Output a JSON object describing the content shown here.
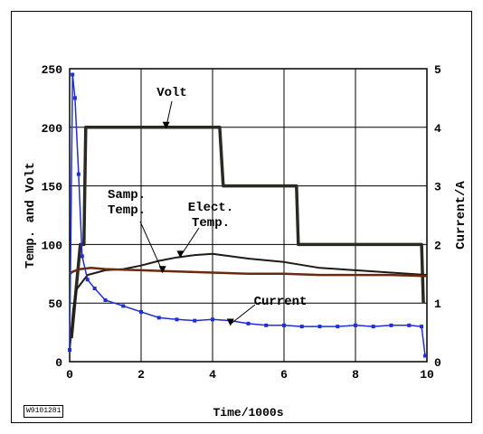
{
  "figure_id": "W9101281",
  "chart_data": {
    "type": "line",
    "xlabel": "Time/1000s",
    "ylabel_left": "Temp. and Volt",
    "ylabel_right": "Current/A",
    "xlim": [
      0,
      10
    ],
    "ylim_left": [
      0,
      250
    ],
    "ylim_right": [
      0,
      5
    ],
    "x_ticks": [
      "0",
      "2",
      "4",
      "6",
      "8",
      "10"
    ],
    "y_left_ticks": [
      "0",
      "50",
      "100",
      "150",
      "200",
      "250"
    ],
    "y_right_ticks": [
      "0",
      "1",
      "2",
      "3",
      "4",
      "5"
    ],
    "grid": true,
    "series": [
      {
        "name": "Volt",
        "axis": "left",
        "color": "#2a2a22",
        "x": [
          0.05,
          0.3,
          0.4,
          0.45,
          4.2,
          4.3,
          6.35,
          6.4,
          9.85,
          9.9
        ],
        "y": [
          20,
          100,
          100,
          200,
          200,
          150,
          150,
          100,
          100,
          50
        ]
      },
      {
        "name": "Elect. Temp.",
        "axis": "left",
        "color": "#1e1a14",
        "x": [
          0,
          0.1,
          0.2,
          0.5,
          1,
          1.5,
          2,
          2.5,
          3,
          3.5,
          4,
          4.5,
          5,
          6,
          7,
          8,
          9,
          10
        ],
        "y": [
          10,
          45,
          62,
          74,
          78,
          79,
          82,
          86,
          89,
          91,
          92,
          90,
          88,
          85,
          80,
          78,
          76,
          74
        ]
      },
      {
        "name": "Samp. Temp.",
        "axis": "left",
        "color": "#6b2a10",
        "x": [
          0,
          0.1,
          0.3,
          0.6,
          1,
          2,
          3,
          4,
          5,
          6,
          7,
          8,
          9,
          10
        ],
        "y": [
          75,
          77,
          79,
          80,
          79,
          78,
          77,
          76,
          75,
          75,
          74,
          74,
          74,
          73
        ]
      },
      {
        "name": "Current",
        "axis": "right",
        "color": "#1f2ed6",
        "x": [
          0,
          0.08,
          0.15,
          0.25,
          0.35,
          0.5,
          0.7,
          1,
          1.5,
          2,
          2.5,
          3,
          3.5,
          4,
          4.5,
          5,
          5.5,
          6,
          6.5,
          7,
          7.5,
          8,
          8.5,
          9,
          9.5,
          9.85,
          9.95
        ],
        "y": [
          0.2,
          4.9,
          4.5,
          3.2,
          1.8,
          1.4,
          1.25,
          1.05,
          0.95,
          0.85,
          0.75,
          0.72,
          0.7,
          0.72,
          0.7,
          0.65,
          0.62,
          0.62,
          0.6,
          0.6,
          0.6,
          0.62,
          0.6,
          0.62,
          0.62,
          0.6,
          0.1
        ]
      }
    ],
    "annotations": [
      {
        "text": "Volt",
        "target_x": 2.7,
        "target_y": 200
      },
      {
        "text": "Samp. Temp.",
        "target_x": 2.6,
        "target_y": 77
      },
      {
        "text": "Elect. Temp.",
        "target_x": 3.1,
        "target_y": 90
      },
      {
        "text": "Current",
        "target_x": 4.5,
        "target_y": 32
      }
    ]
  }
}
